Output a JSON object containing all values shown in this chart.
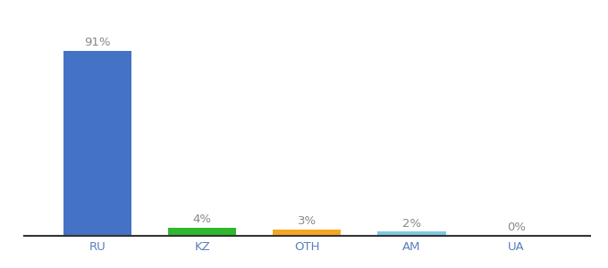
{
  "categories": [
    "RU",
    "KZ",
    "OTH",
    "AM",
    "UA"
  ],
  "values": [
    91,
    4,
    3,
    2,
    0
  ],
  "bar_colors": [
    "#4472c4",
    "#2db82d",
    "#f5a623",
    "#7ec8e3",
    "#7ec8e3"
  ],
  "ylim": [
    0,
    100
  ],
  "background_color": "#ffffff",
  "label_fontsize": 9.5,
  "tick_fontsize": 9.5,
  "tick_color": "#5b7fba",
  "label_color": "#888888",
  "bar_width": 0.65,
  "xlim_left": -0.7,
  "xlim_right": 4.7
}
